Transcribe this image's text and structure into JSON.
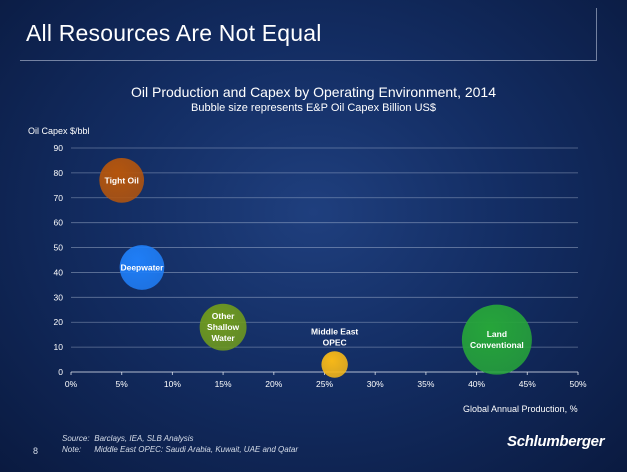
{
  "slide": {
    "title": "All Resources Are Not Equal",
    "page_number": "8",
    "source_label": "Source:",
    "source_text": "Barclays, IEA, SLB Analysis",
    "note_label": "Note:",
    "note_text": "Middle East OPEC: Saudi Arabia, Kuwait, UAE and Qatar",
    "logo_text": "Schlumberger"
  },
  "chart_data": {
    "type": "scatter",
    "title": "Oil Production and Capex by Operating Environment, 2014",
    "subtitle": "Bubble size represents E&P Oil Capex Billion US$",
    "xlabel": "Global Annual Production, %",
    "ylabel": "Oil Capex $/bbl",
    "xlim": [
      0,
      50
    ],
    "ylim": [
      0,
      90
    ],
    "x_ticks": [
      "0%",
      "5%",
      "10%",
      "15%",
      "20%",
      "25%",
      "30%",
      "35%",
      "40%",
      "45%",
      "50%"
    ],
    "y_ticks": [
      "0",
      "10",
      "20",
      "30",
      "40",
      "50",
      "60",
      "70",
      "80",
      "90"
    ],
    "grid": "horizontal",
    "bubbles": [
      {
        "label": [
          "Tight Oil"
        ],
        "x": 5,
        "y": 77,
        "size": 100,
        "color": "#b4550d",
        "label_pos": "inside"
      },
      {
        "label": [
          "Deepwater"
        ],
        "x": 7,
        "y": 42,
        "size": 100,
        "color": "#1f7ef7",
        "label_pos": "inside"
      },
      {
        "label": [
          "Other",
          "Shallow",
          "Water"
        ],
        "x": 15,
        "y": 18,
        "size": 110,
        "color": "#6f9a1e",
        "label_pos": "inside"
      },
      {
        "label": [
          "Middle East",
          "OPEC"
        ],
        "x": 26,
        "y": 3,
        "size": 35,
        "color": "#f6b818",
        "label_pos": "above"
      },
      {
        "label": [
          "Land",
          "Conventional"
        ],
        "x": 42,
        "y": 13,
        "size": 245,
        "color": "#26a53a",
        "label_pos": "inside"
      }
    ]
  }
}
